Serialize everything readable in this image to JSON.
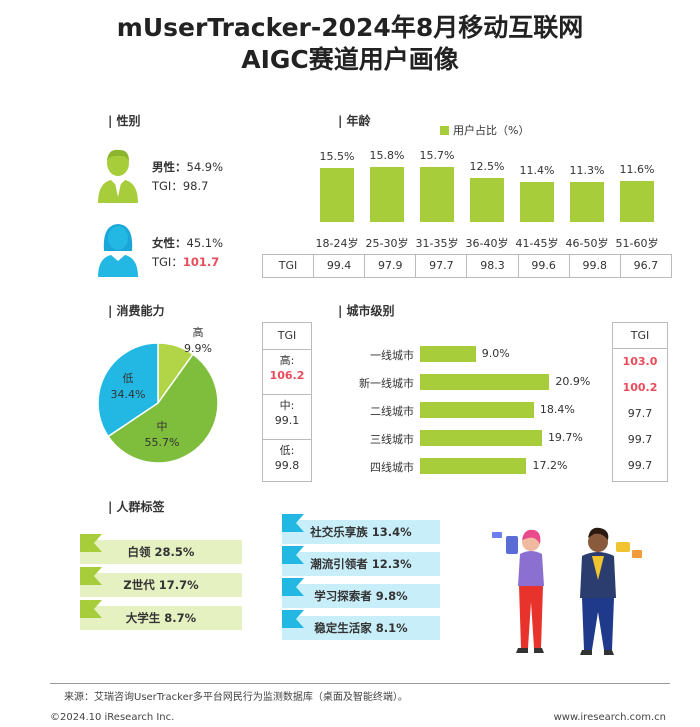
{
  "title_line1": "mUserTracker-2024年8月移动互联网",
  "title_line2": "AIGC赛道用户画像",
  "sections": {
    "gender": "| 性别",
    "age": "| 年龄",
    "consume": "| 消费能力",
    "city": "| 城市级别",
    "tags": "| 人群标签"
  },
  "gender": {
    "male_label": "男性：",
    "male_value": "54.9%",
    "male_tgi_label": "TGI：",
    "male_tgi": "98.7",
    "female_label": "女性：",
    "female_value": "45.1%",
    "female_tgi_label": "TGI：",
    "female_tgi": "101.7"
  },
  "age_legend": "用户占比（%）",
  "tgi_label": "TGI",
  "colors": {
    "green": "#a8cd3b",
    "pie_dark": "#7fbd3c",
    "pie_light": "#b2d447",
    "pie_blue": "#22b8e3",
    "red": "#e94b5a",
    "tag_green": "#e6f1c2",
    "tag_blue": "#c8eef9"
  },
  "consume_tgi": {
    "header": "TGI",
    "rows": [
      {
        "label": "高:",
        "value": "106.2"
      },
      {
        "label": "中:",
        "value": "99.1"
      },
      {
        "label": "低:",
        "value": "99.8"
      }
    ]
  },
  "city_tgi_header": "TGI",
  "chart_data": [
    {
      "type": "bar",
      "title": "年龄",
      "series_name": "用户占比（%）",
      "categories": [
        "18-24岁",
        "25-30岁",
        "31-35岁",
        "36-40岁",
        "41-45岁",
        "46-50岁",
        "51-60岁"
      ],
      "values": [
        15.5,
        15.8,
        15.7,
        12.5,
        11.4,
        11.3,
        11.6
      ],
      "labels": [
        "15.5%",
        "15.8%",
        "15.7%",
        "12.5%",
        "11.4%",
        "11.3%",
        "11.6%"
      ],
      "tgi": [
        "99.4",
        "97.9",
        "97.7",
        "98.3",
        "99.6",
        "99.8",
        "96.7"
      ]
    },
    {
      "type": "pie",
      "title": "消费能力",
      "categories": [
        "高",
        "中",
        "低"
      ],
      "values": [
        9.9,
        55.7,
        34.4
      ],
      "labels": [
        "9.9%",
        "55.7%",
        "34.4%"
      ]
    },
    {
      "type": "bar",
      "orientation": "horizontal",
      "title": "城市级别",
      "categories": [
        "一线城市",
        "新一线城市",
        "二线城市",
        "三线城市",
        "四线城市"
      ],
      "values": [
        9.0,
        20.9,
        18.4,
        19.7,
        17.2
      ],
      "labels": [
        "9.0%",
        "20.9%",
        "18.4%",
        "19.7%",
        "17.2%"
      ],
      "tgi": [
        "103.0",
        "100.2",
        "97.7",
        "99.7",
        "99.7"
      ]
    }
  ],
  "tags": {
    "left": [
      {
        "name": "白领",
        "value": "28.5%"
      },
      {
        "name": "Z世代",
        "value": "17.7%"
      },
      {
        "name": "大学生",
        "value": "8.7%"
      }
    ],
    "right": [
      {
        "name": "社交乐享族",
        "value": "13.4%"
      },
      {
        "name": "潮流引领者",
        "value": "12.3%"
      },
      {
        "name": "学习探索者",
        "value": "9.8%"
      },
      {
        "name": "稳定生活家",
        "value": "8.1%"
      }
    ]
  },
  "footer": {
    "source": "来源：艾瑞咨询UserTracker多平台网民行为监测数据库（桌面及智能终端）。",
    "copyright": "©2024.10 iResearch Inc.",
    "website": "www.iresearch.com.cn"
  }
}
